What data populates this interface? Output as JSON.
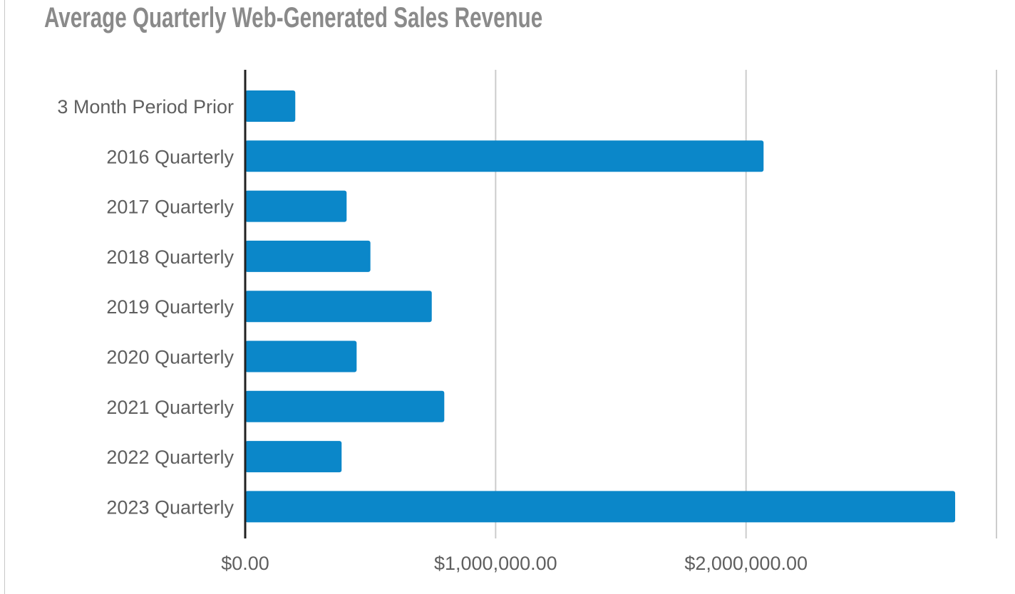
{
  "colors": {
    "bar": "#0b87c9",
    "grid": "#cccccc",
    "axis": "#222222",
    "text": "#5f5f5f"
  },
  "chart_data": {
    "type": "bar",
    "orientation": "horizontal",
    "title": "Average Quarterly Web-Generated Sales Revenue",
    "xlabel": "",
    "ylabel": "",
    "categories": [
      "3 Month Period Prior",
      "2016 Quarterly",
      "2017 Quarterly",
      "2018 Quarterly",
      "2019 Quarterly",
      "2020 Quarterly",
      "2021 Quarterly",
      "2022 Quarterly",
      "2023 Quarterly"
    ],
    "values": [
      200000,
      2070000,
      405000,
      500000,
      745000,
      445000,
      795000,
      385000,
      2835000
    ],
    "xlim": [
      0,
      3000000
    ],
    "xticks": [
      0,
      1000000,
      2000000,
      3000000
    ],
    "xtick_labels": [
      "$0.00",
      "$1,000,000.00",
      "$2,000,000.00",
      ""
    ],
    "grid": true,
    "legend": "none"
  }
}
